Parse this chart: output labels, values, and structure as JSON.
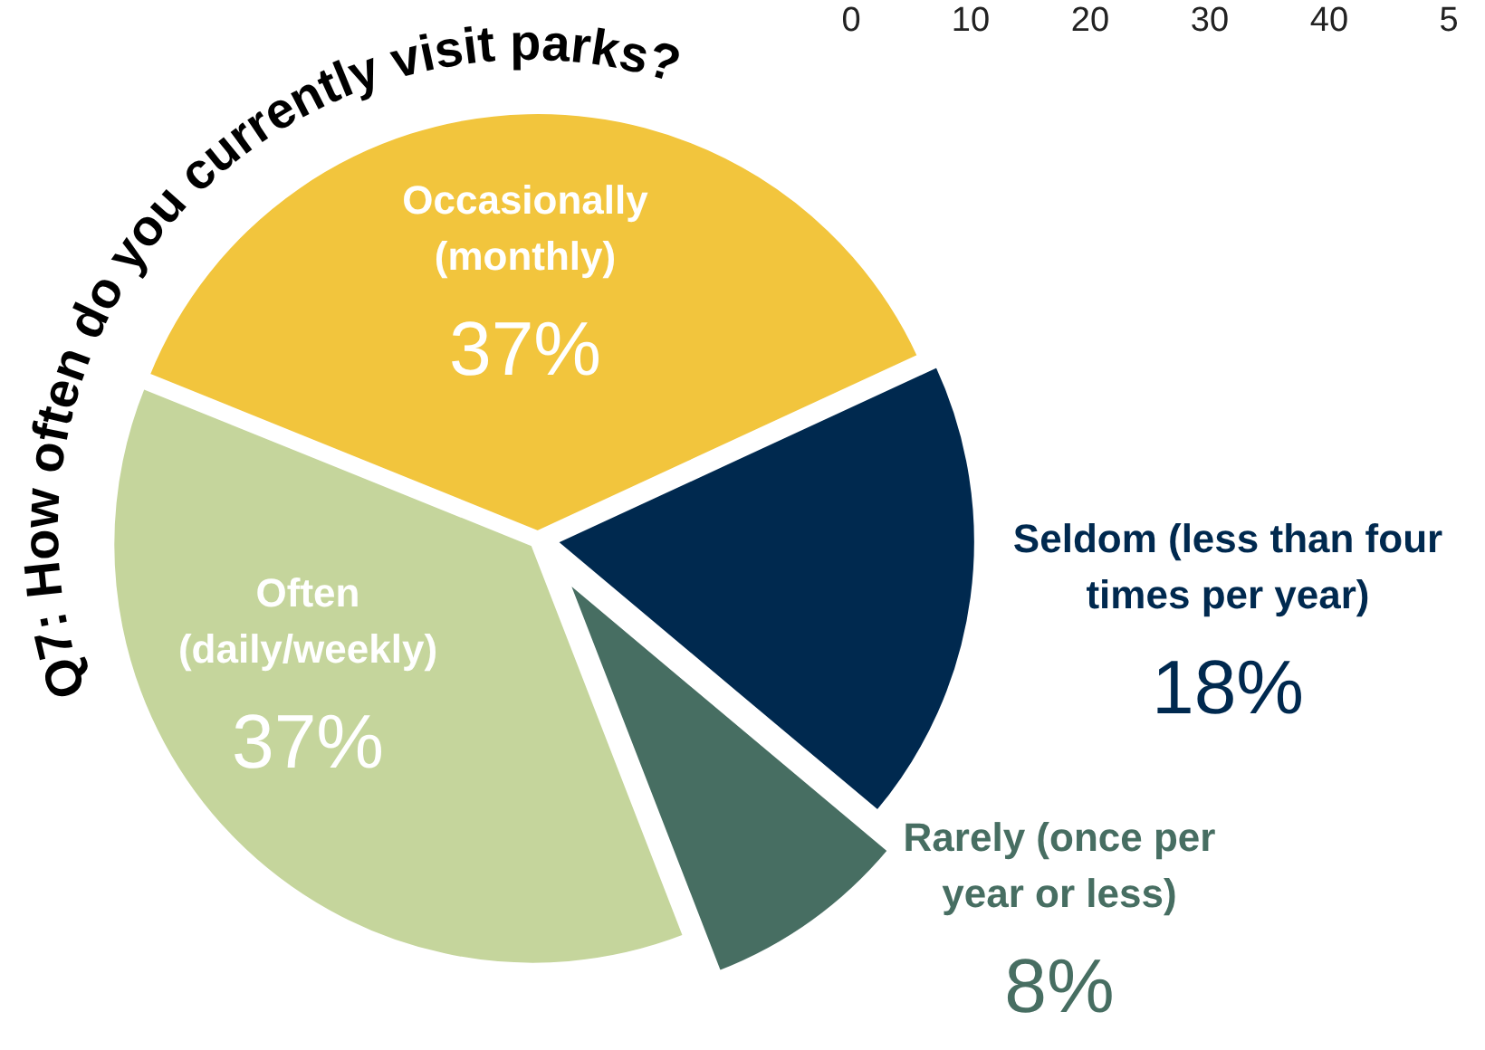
{
  "chart_data": {
    "type": "pie",
    "title": "Q7: How often do you currently visit parks?",
    "categories": [
      "Occasionally (monthly)",
      "Seldom (less than four times per year)",
      "Rarely (once per year or less)",
      "Often (daily/weekly)"
    ],
    "values": [
      37,
      18,
      8,
      37
    ],
    "value_labels": [
      "37%",
      "18%",
      "8%",
      "37%"
    ],
    "colors": [
      "#f2c53d",
      "#00294f",
      "#476e62",
      "#c5d59c"
    ],
    "annotations": [
      "0",
      "10",
      "20",
      "30",
      "40",
      "5"
    ]
  }
}
